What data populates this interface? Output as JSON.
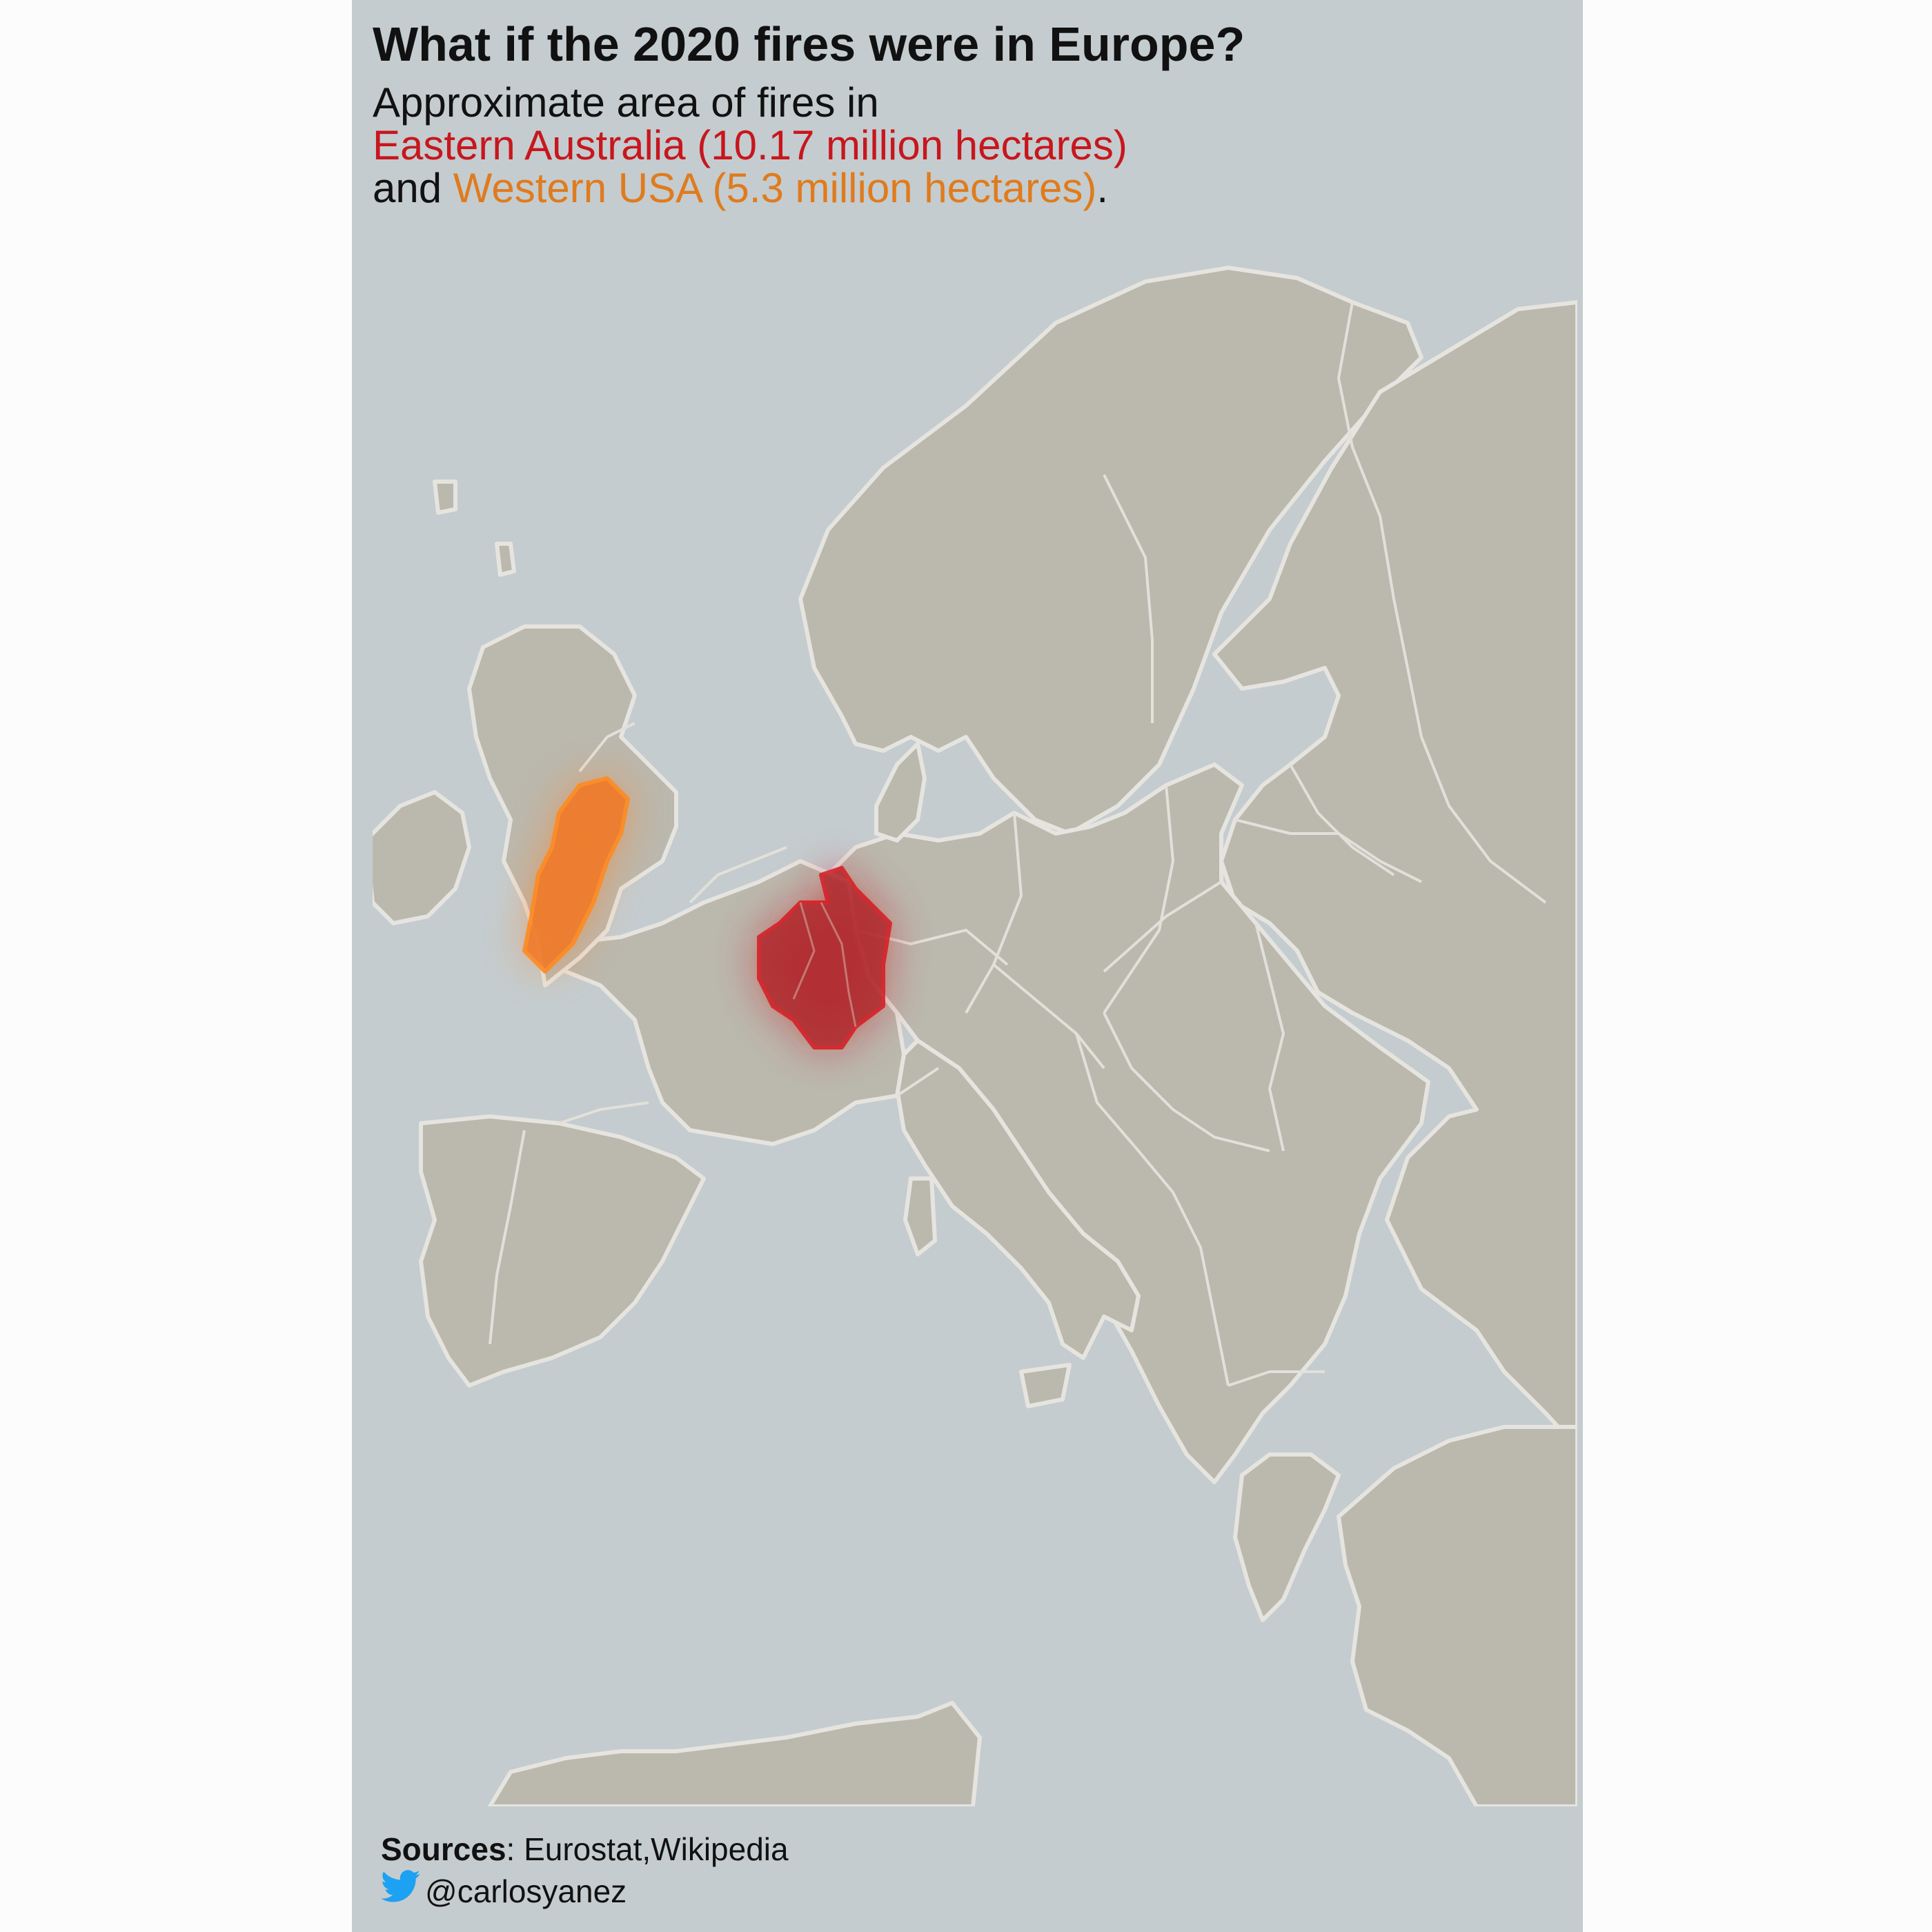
{
  "title": "What if the 2020 fires were in Europe?",
  "subtitle": {
    "line1": "Approximate area of fires in",
    "australia_label": "Eastern Australia (10.17 million hectares)",
    "and_word": "and ",
    "usa_label": "Western USA (5.3 million hectares)",
    "period": "."
  },
  "sources": {
    "label": "Sources",
    "separator": ": ",
    "value": "Eurostat,Wikipedia"
  },
  "credit": {
    "handle": "@carlosyanez",
    "icon": "twitter-bird-icon"
  },
  "map": {
    "region": "Europe",
    "overlays": [
      {
        "name": "Eastern Australia",
        "area_million_hectares": 10.17,
        "color": "#c8161d",
        "placed_over": "France, Belgium, Luxembourg, western Germany"
      },
      {
        "name": "Western USA",
        "area_million_hectares": 5.3,
        "color": "#ff7f1e",
        "placed_over": "England"
      }
    ]
  },
  "colors": {
    "sea": "#c4cccf",
    "land": "#bbb8ae",
    "border": "#e2e0da",
    "australia": "#c8161d",
    "usa": "#ff7f1e",
    "twitter": "#1da1f2"
  }
}
